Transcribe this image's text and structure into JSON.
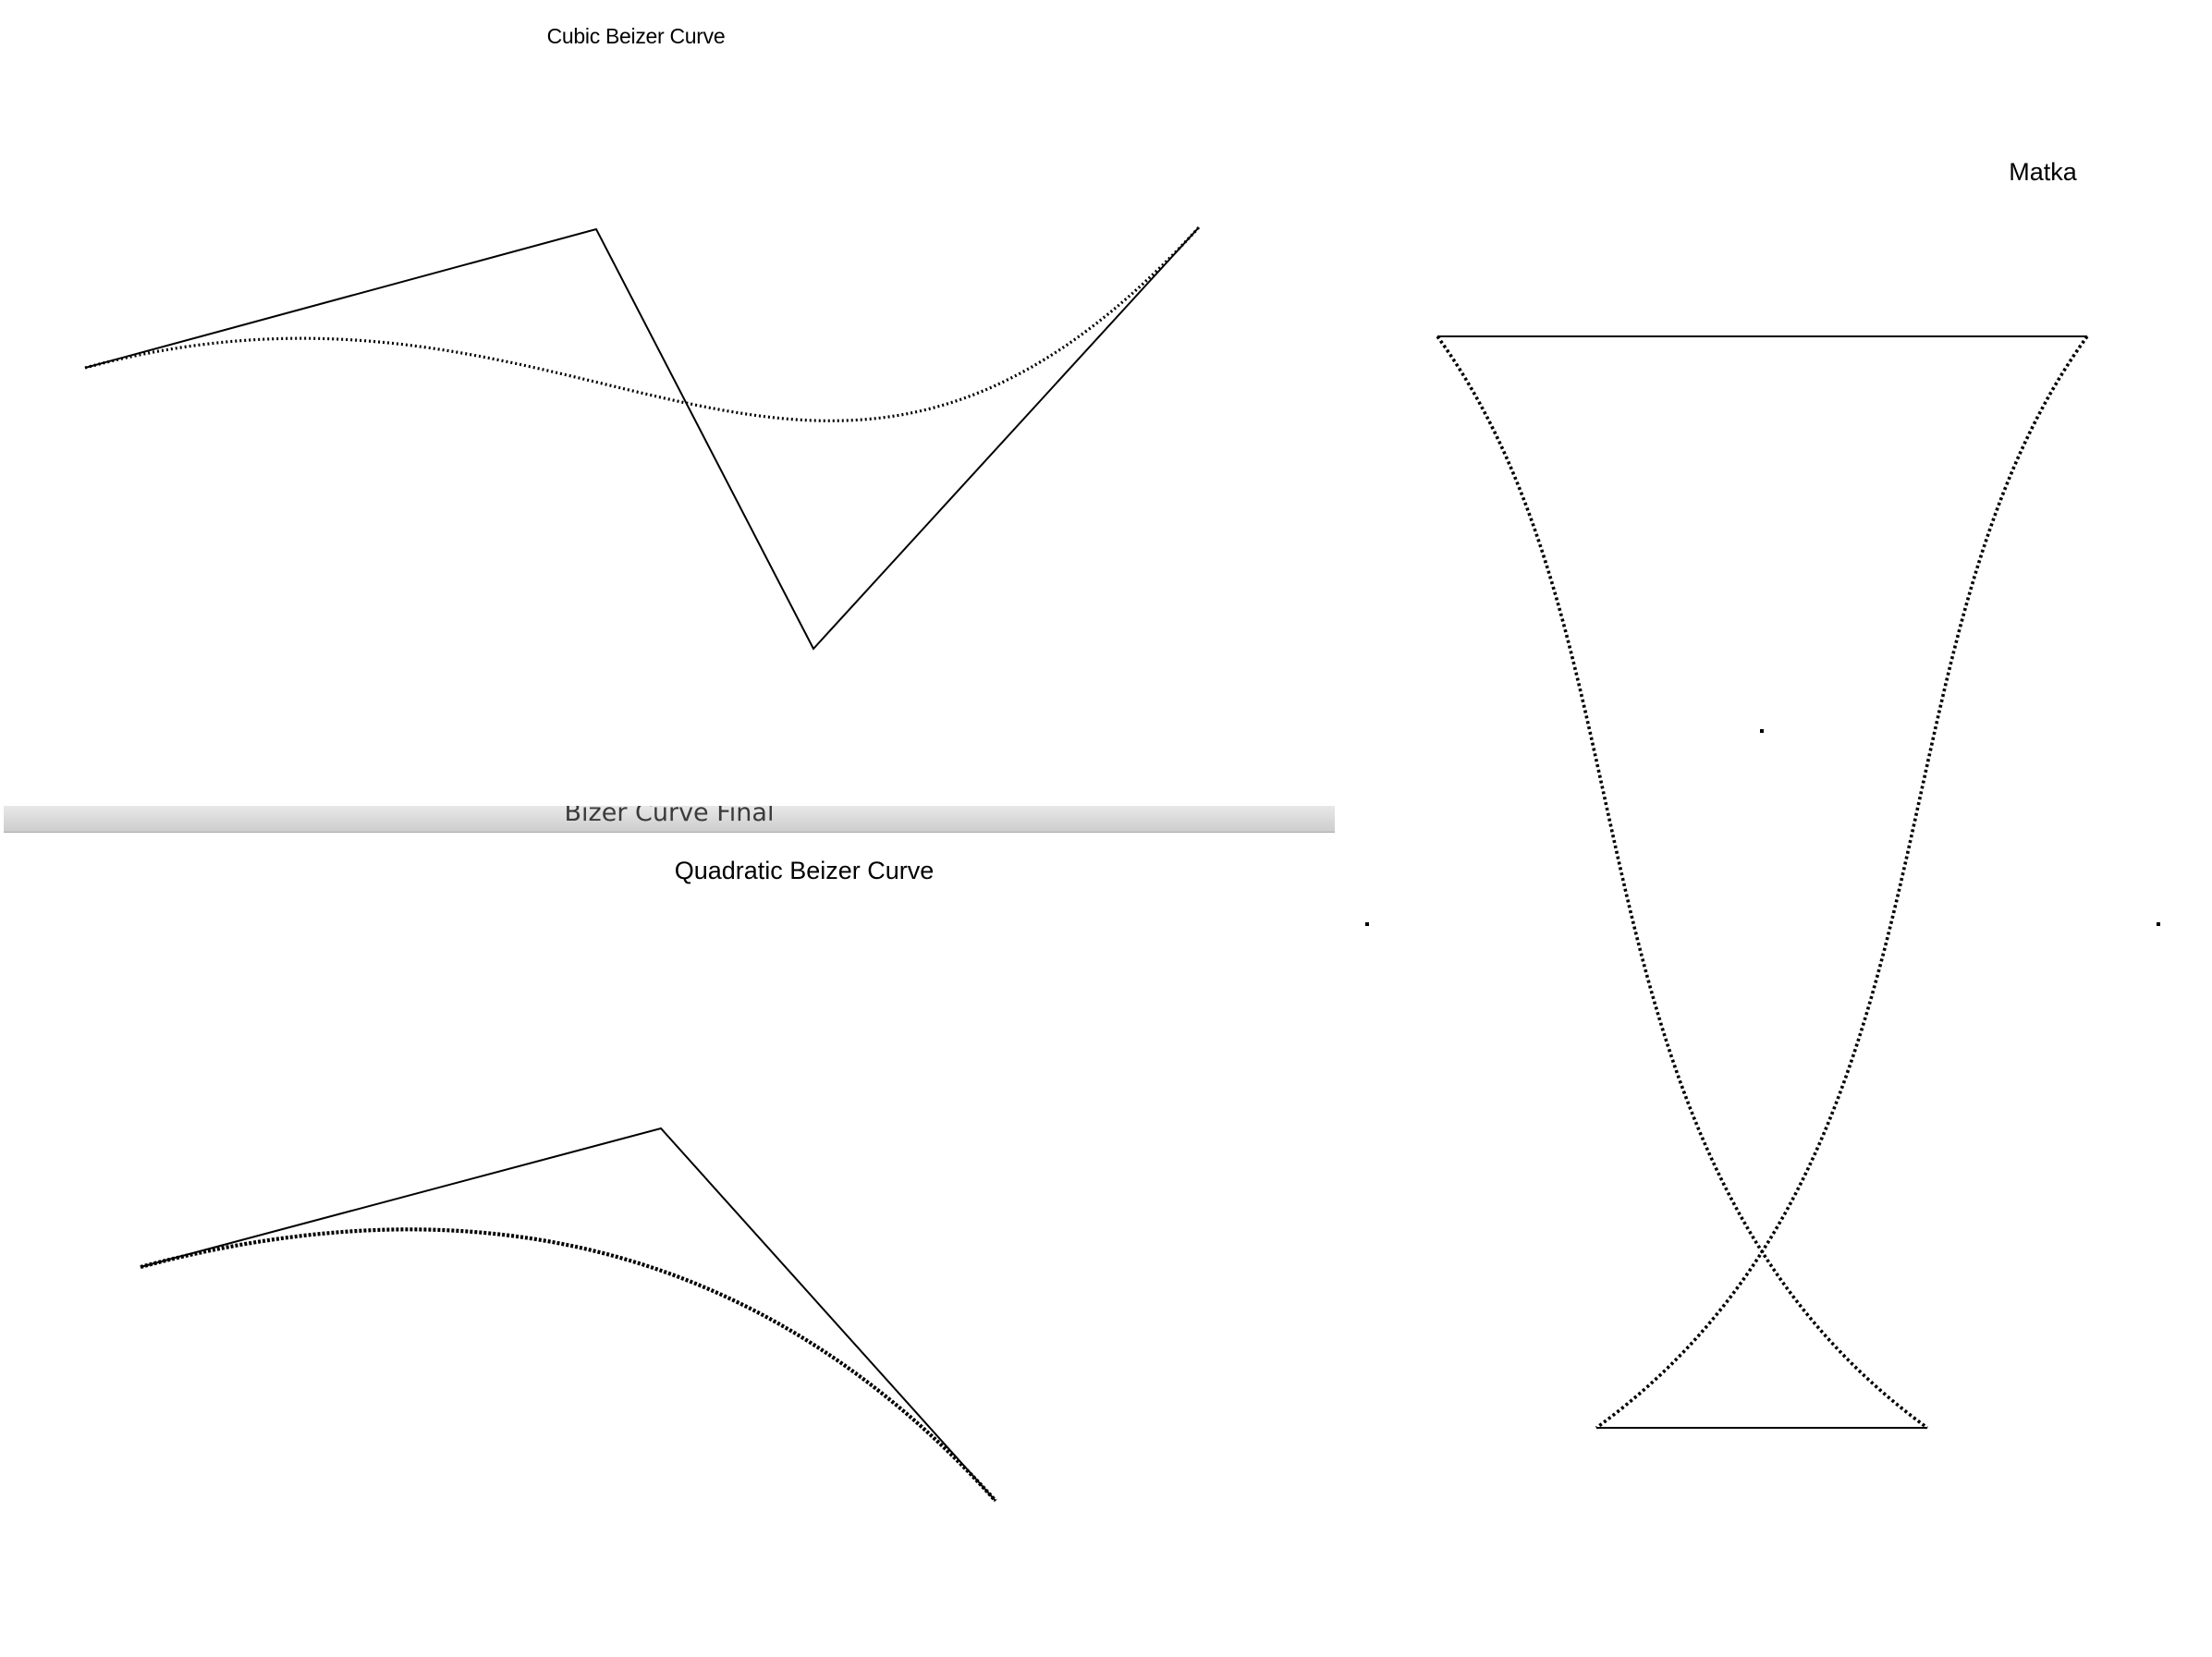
{
  "cubic_window": {
    "title": "Cubic Beizer Curve"
  },
  "matka_window": {
    "title": "Matka"
  },
  "quadratic_window": {
    "titlebar": "Bizer Curve Final",
    "title": "Quadratic Beizer Curve"
  },
  "colors": {
    "ink": "#000000",
    "titlebar_text": "#3b3b3b"
  }
}
